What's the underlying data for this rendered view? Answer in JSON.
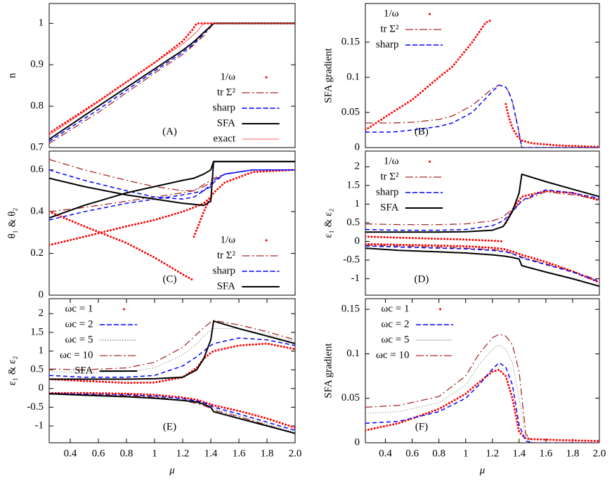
{
  "chart_data": [
    {
      "type": "line",
      "panel_label": "(A)",
      "ylabel": "n",
      "legend": "lower right",
      "xlim": [
        0.25,
        2.0
      ],
      "ylim": [
        0.7,
        1.048
      ],
      "yticks": [
        0.7,
        0.8,
        0.9,
        1
      ],
      "x": [
        0.25,
        0.6,
        1.0,
        1.2,
        1.27,
        1.3,
        1.35,
        1.42,
        2.0
      ],
      "series": [
        {
          "name": "1/ω",
          "color": "#ff0000",
          "style": "points",
          "values": [
            0.735,
            0.812,
            0.905,
            0.957,
            0.985,
            1,
            1,
            1,
            1
          ]
        },
        {
          "name": "tr Σ²",
          "color": "#a52a2a",
          "style": "dashdot",
          "values": [
            0.71,
            0.785,
            0.88,
            0.925,
            0.945,
            0.955,
            0.97,
            1,
            1
          ]
        },
        {
          "name": "sharp",
          "color": "#0000ff",
          "style": "dashed",
          "values": [
            0.715,
            0.792,
            0.885,
            0.93,
            0.948,
            0.958,
            0.975,
            1,
            1
          ]
        },
        {
          "name": "SFA",
          "color": "#000000",
          "style": "solid",
          "values": [
            0.72,
            0.8,
            0.89,
            0.935,
            0.953,
            0.962,
            0.978,
            1,
            1
          ]
        },
        {
          "name": "exact",
          "color": "#ff3030",
          "style": "thin",
          "values": [
            0.73,
            0.81,
            0.905,
            0.95,
            0.97,
            0.98,
            1.0,
            1,
            1
          ]
        }
      ]
    },
    {
      "type": "line",
      "panel_label": "(B)",
      "ylabel": "SFA gradient",
      "legend": "upper left",
      "xlim": [
        0.25,
        2.0
      ],
      "ylim": [
        0,
        0.205
      ],
      "yticks": [
        0,
        0.05,
        0.1,
        0.15
      ],
      "x": [
        0.25,
        0.45,
        0.6,
        0.8,
        0.9,
        1.05,
        1.15,
        1.2,
        1.25,
        1.3,
        1.32,
        1.35,
        1.39,
        1.42,
        1.5,
        1.7,
        2.0
      ],
      "series": [
        {
          "name": "1/ω",
          "color": "#ff0000",
          "style": "points",
          "values": [
            0.025,
            0.05,
            0.068,
            0.1,
            0.115,
            0.15,
            0.178,
            0.182,
            null,
            0.062,
            0.045,
            0.028,
            0.015,
            0.01,
            0.006,
            0.003,
            0.001
          ]
        },
        {
          "name": "tr Σ²",
          "color": "#a52a2a",
          "style": "dashdot",
          "values": [
            0.035,
            0.035,
            0.036,
            0.04,
            0.045,
            0.06,
            0.076,
            0.084,
            0.089,
            0.086,
            0.08,
            0.065,
            0.03,
            0,
            0,
            0,
            0
          ]
        },
        {
          "name": "sharp",
          "color": "#0000ff",
          "style": "dashed",
          "values": [
            0.022,
            0.022,
            0.025,
            0.03,
            0.035,
            0.05,
            0.07,
            0.08,
            0.089,
            0.086,
            0.08,
            0.065,
            0.03,
            0,
            0,
            0,
            0
          ]
        }
      ]
    },
    {
      "type": "line",
      "panel_label": "(C)",
      "ylabel": "θ₁ & θ₂",
      "legend": "lower right",
      "xlim": [
        0.25,
        2.0
      ],
      "ylim": [
        0,
        0.69
      ],
      "yticks": [
        0,
        0.2,
        0.4,
        0.6
      ],
      "x": [
        0.25,
        0.5,
        0.8,
        1.0,
        1.2,
        1.28,
        1.35,
        1.4,
        1.42,
        1.5,
        1.7,
        2.0
      ],
      "series": [
        {
          "name": "1/ω",
          "color": "#ff0000",
          "style": "points",
          "values": [
            0.4,
            0.33,
            0.25,
            0.18,
            0.1,
            0.07,
            null,
            null,
            null,
            null,
            null,
            null
          ]
        },
        {
          "color": "#ff0000",
          "style": "points",
          "values": [
            0.24,
            0.28,
            0.33,
            0.36,
            0.4,
            0.42,
            0.44,
            0.47,
            0.49,
            0.54,
            0.59,
            0.6
          ]
        },
        {
          "color": "#ff0000",
          "style": "points",
          "values": [
            null,
            null,
            null,
            null,
            null,
            0.28,
            0.4,
            0.47,
            null,
            null,
            null,
            null
          ]
        },
        {
          "name": "tr Σ²",
          "color": "#a52a2a",
          "style": "dashdot",
          "values": [
            0.65,
            0.6,
            0.55,
            0.52,
            0.5,
            0.5,
            0.53,
            0.55,
            0.56,
            0.58,
            0.6,
            0.6
          ]
        },
        {
          "color": "#a52a2a",
          "style": "dashdot",
          "values": [
            0.4,
            0.42,
            0.45,
            0.47,
            0.49,
            0.5,
            0.52,
            0.54,
            0.55,
            0.58,
            0.6,
            0.6
          ]
        },
        {
          "name": "sharp",
          "color": "#0000ff",
          "style": "dashed",
          "values": [
            0.6,
            0.55,
            0.5,
            0.47,
            0.46,
            0.47,
            0.5,
            0.53,
            0.55,
            0.58,
            0.6,
            0.6
          ]
        },
        {
          "color": "#0000ff",
          "style": "dashed",
          "values": [
            0.36,
            0.4,
            0.44,
            0.46,
            0.48,
            0.49,
            0.5,
            0.52,
            0.54,
            0.58,
            0.6,
            0.6
          ]
        },
        {
          "name": "SFA",
          "color": "#000000",
          "style": "solid",
          "values": [
            0.56,
            0.52,
            0.48,
            0.46,
            0.44,
            0.435,
            0.43,
            0.45,
            0.64,
            0.64,
            0.64,
            0.64
          ]
        },
        {
          "color": "#000000",
          "style": "solid",
          "values": [
            0.37,
            0.43,
            0.49,
            0.52,
            0.55,
            0.56,
            0.58,
            0.6,
            0.64,
            0.64,
            0.64,
            0.64
          ]
        }
      ]
    },
    {
      "type": "line",
      "panel_label": "(D)",
      "ylabel": "ε₁ & ε₂",
      "legend": "upper left",
      "xlim": [
        0.25,
        2.0
      ],
      "ylim": [
        -1.44,
        2.42
      ],
      "yticks": [
        -1,
        -0.5,
        0,
        0.5,
        1,
        1.5,
        2
      ],
      "x": [
        0.25,
        0.5,
        0.8,
        1.0,
        1.2,
        1.28,
        1.3,
        1.35,
        1.4,
        1.42,
        1.6,
        1.8,
        2.0
      ],
      "series": [
        {
          "name": "1/ω",
          "color": "#ff0000",
          "style": "points",
          "values": [
            0.13,
            0.1,
            0.07,
            0.05,
            0.02,
            0.0,
            null,
            null,
            null,
            null,
            null,
            null,
            null
          ]
        },
        {
          "color": "#ff0000",
          "style": "points",
          "values": [
            -0.07,
            -0.09,
            -0.11,
            -0.13,
            -0.17,
            -0.2,
            -0.22,
            -0.27,
            -0.33,
            -0.36,
            -0.55,
            -0.8,
            -1.1
          ]
        },
        {
          "color": "#ff0000",
          "style": "points",
          "values": [
            null,
            null,
            null,
            null,
            null,
            null,
            0.5,
            0.85,
            1.1,
            1.2,
            1.35,
            1.3,
            1.1
          ]
        },
        {
          "name": "tr Σ²",
          "color": "#a52a2a",
          "style": "dashdot",
          "values": [
            0.47,
            0.45,
            0.45,
            0.47,
            0.55,
            0.65,
            0.72,
            0.85,
            1.0,
            1.08,
            1.33,
            1.25,
            1.12
          ]
        },
        {
          "color": "#a52a2a",
          "style": "dashdot",
          "values": [
            -0.1,
            -0.12,
            -0.15,
            -0.18,
            -0.22,
            -0.25,
            -0.27,
            -0.32,
            -0.38,
            -0.42,
            -0.6,
            -0.8,
            -1.05
          ]
        },
        {
          "name": "sharp",
          "color": "#0000ff",
          "style": "dashed",
          "values": [
            0.32,
            0.3,
            0.3,
            0.32,
            0.42,
            0.55,
            0.62,
            0.8,
            1.0,
            1.1,
            1.38,
            1.3,
            1.15
          ]
        },
        {
          "color": "#0000ff",
          "style": "dashed",
          "values": [
            -0.12,
            -0.15,
            -0.18,
            -0.2,
            -0.24,
            -0.27,
            -0.28,
            -0.33,
            -0.4,
            -0.44,
            -0.62,
            -0.82,
            -1.08
          ]
        },
        {
          "name": "SFA",
          "color": "#000000",
          "style": "solid",
          "values": [
            0.25,
            0.25,
            0.25,
            0.26,
            0.3,
            0.4,
            0.5,
            0.8,
            1.3,
            1.8,
            1.6,
            1.4,
            1.2
          ]
        },
        {
          "color": "#000000",
          "style": "solid",
          "values": [
            -0.18,
            -0.24,
            -0.28,
            -0.31,
            -0.36,
            -0.39,
            -0.4,
            -0.43,
            -0.47,
            -0.65,
            -0.82,
            -1.0,
            -1.2
          ]
        }
      ]
    },
    {
      "type": "line",
      "panel_label": "(E)",
      "ylabel": "ε₁ & ε₂",
      "xlabel": "μ",
      "legend": "upper left",
      "xlim": [
        0.25,
        2.0
      ],
      "xticks": [
        0.4,
        0.6,
        0.8,
        1,
        1.2,
        1.4,
        1.6,
        1.8,
        {
          "value": 2,
          "label": "2.0"
        }
      ],
      "ylim": [
        -1.45,
        2.4
      ],
      "yticks": [
        -1,
        -0.5,
        0,
        0.5,
        1,
        1.5,
        2
      ],
      "x": [
        0.25,
        0.5,
        0.8,
        1.0,
        1.2,
        1.3,
        1.35,
        1.4,
        1.42,
        1.6,
        1.8,
        2.0
      ],
      "series": [
        {
          "name": "ωc = 1",
          "color": "#ff0000",
          "style": "points",
          "values": [
            0.25,
            0.2,
            0.15,
            0.16,
            0.3,
            0.55,
            0.8,
            0.95,
            1.0,
            1.15,
            1.2,
            1.05
          ]
        },
        {
          "color": "#ff0000",
          "style": "points",
          "values": [
            -0.12,
            -0.12,
            -0.14,
            -0.17,
            -0.24,
            -0.3,
            -0.36,
            -0.42,
            -0.45,
            -0.6,
            -0.8,
            -1.05
          ]
        },
        {
          "name": "ωc = 2",
          "color": "#0000ff",
          "style": "dashed",
          "values": [
            0.35,
            0.3,
            0.3,
            0.35,
            0.6,
            0.85,
            1.0,
            1.15,
            1.2,
            1.35,
            1.3,
            1.15
          ]
        },
        {
          "color": "#0000ff",
          "style": "dashed",
          "values": [
            -0.13,
            -0.15,
            -0.17,
            -0.2,
            -0.27,
            -0.33,
            -0.38,
            -0.45,
            -0.5,
            -0.68,
            -0.9,
            -1.12
          ]
        },
        {
          "name": "ωc = 5",
          "color": "#55775f",
          "style": "dotted",
          "values": [
            0.45,
            0.42,
            0.45,
            0.55,
            0.9,
            1.2,
            1.4,
            1.55,
            1.6,
            1.6,
            1.45,
            1.25
          ]
        },
        {
          "color": "#55775f",
          "style": "dotted",
          "values": [
            -0.14,
            -0.15,
            -0.18,
            -0.22,
            -0.3,
            -0.37,
            -0.42,
            -0.5,
            -0.55,
            -0.72,
            -0.95,
            -1.17
          ]
        },
        {
          "name": "ωc = 10",
          "color": "#a52a2a",
          "style": "dashdot",
          "values": [
            0.52,
            0.5,
            0.55,
            0.7,
            1.1,
            1.45,
            1.62,
            1.78,
            1.82,
            1.7,
            1.52,
            1.3
          ]
        },
        {
          "color": "#a52a2a",
          "style": "dashdot",
          "values": [
            -0.15,
            -0.17,
            -0.19,
            -0.23,
            -0.32,
            -0.4,
            -0.46,
            -0.53,
            -0.58,
            -0.75,
            -0.98,
            -1.2
          ]
        },
        {
          "name": "SFA",
          "color": "#000000",
          "style": "solid",
          "values": [
            0.25,
            0.25,
            0.25,
            0.26,
            0.3,
            0.5,
            0.8,
            1.3,
            1.8,
            1.6,
            1.4,
            1.2
          ]
        },
        {
          "color": "#000000",
          "style": "solid",
          "values": [
            -0.14,
            -0.18,
            -0.22,
            -0.26,
            -0.32,
            -0.36,
            -0.42,
            -0.5,
            -0.62,
            -0.8,
            -1.0,
            -1.2
          ]
        }
      ]
    },
    {
      "type": "line",
      "panel_label": "(F)",
      "ylabel": "SFA gradient",
      "xlabel": "μ",
      "legend": "upper left",
      "xlim": [
        0.25,
        2.0
      ],
      "xticks": [
        0.4,
        0.6,
        0.8,
        1,
        1.2,
        1.4,
        1.6,
        1.8,
        {
          "value": 2,
          "label": "2.0"
        }
      ],
      "ylim": [
        0,
        0.162
      ],
      "yticks": [
        0,
        0.05,
        0.1,
        0.15
      ],
      "x": [
        0.25,
        0.5,
        0.8,
        1.0,
        1.1,
        1.2,
        1.25,
        1.3,
        1.35,
        1.4,
        1.45,
        1.5,
        1.7,
        2.0
      ],
      "series": [
        {
          "name": "ωc = 1",
          "color": "#ff0000",
          "style": "points",
          "values": [
            0.014,
            0.022,
            0.038,
            0.055,
            0.068,
            0.08,
            0.082,
            0.075,
            0.05,
            0.012,
            0.005,
            0.004,
            0.003,
            0.002
          ]
        },
        {
          "name": "ωc = 2",
          "color": "#0000ff",
          "style": "dashed",
          "values": [
            0.022,
            0.024,
            0.035,
            0.05,
            0.065,
            0.083,
            0.09,
            0.085,
            0.065,
            0.02,
            0.002,
            0,
            0,
            0
          ]
        },
        {
          "name": "ωc = 5",
          "color": "#55775f",
          "style": "dotted",
          "values": [
            0.033,
            0.035,
            0.045,
            0.065,
            0.088,
            0.105,
            0.11,
            0.105,
            0.09,
            0.05,
            0.005,
            0,
            0,
            0
          ]
        },
        {
          "name": "ωc = 10",
          "color": "#a52a2a",
          "style": "dashdot",
          "values": [
            0.04,
            0.042,
            0.052,
            0.075,
            0.1,
            0.118,
            0.122,
            0.12,
            0.11,
            0.08,
            0.01,
            0,
            0,
            0
          ]
        }
      ]
    }
  ]
}
